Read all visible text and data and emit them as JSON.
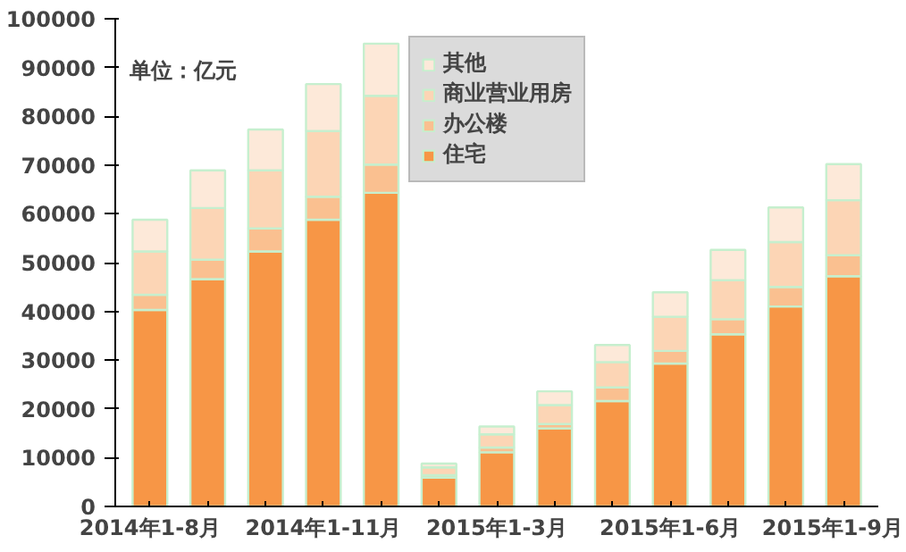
{
  "chart_data": {
    "type": "bar",
    "stacked": true,
    "annotations": [
      "单位：亿元"
    ],
    "categories": [
      "2014年1-8月",
      null,
      null,
      "2014年1-11月",
      null,
      null,
      "2015年1-3月",
      null,
      null,
      "2015年1-6月",
      null,
      null,
      "2015年1-9月"
    ],
    "series": [
      {
        "name": "住宅",
        "color": "#f79646",
        "values": [
          40300,
          46600,
          52300,
          58800,
          64300,
          5900,
          11100,
          16000,
          21600,
          29300,
          35300,
          41000,
          47200
        ]
      },
      {
        "name": "办公楼",
        "color": "#fac090",
        "values": [
          3100,
          4000,
          4700,
          4700,
          5800,
          500,
          1000,
          900,
          2800,
          2600,
          3100,
          4000,
          4300
        ]
      },
      {
        "name": "商业营业用房",
        "color": "#fcd5b5",
        "values": [
          8900,
          10600,
          11900,
          13500,
          14100,
          1600,
          2700,
          3900,
          5200,
          7000,
          8000,
          9200,
          11300
        ]
      },
      {
        "name": "其他",
        "color": "#fde9d9",
        "values": [
          6500,
          7700,
          8400,
          9600,
          10700,
          800,
          1600,
          2800,
          3500,
          5000,
          6200,
          7100,
          7400
        ]
      }
    ],
    "ylim": [
      0,
      100000
    ],
    "yticks": [
      0,
      10000,
      20000,
      30000,
      40000,
      50000,
      60000,
      70000,
      80000,
      90000,
      100000
    ],
    "grid": false,
    "legend": "top"
  }
}
